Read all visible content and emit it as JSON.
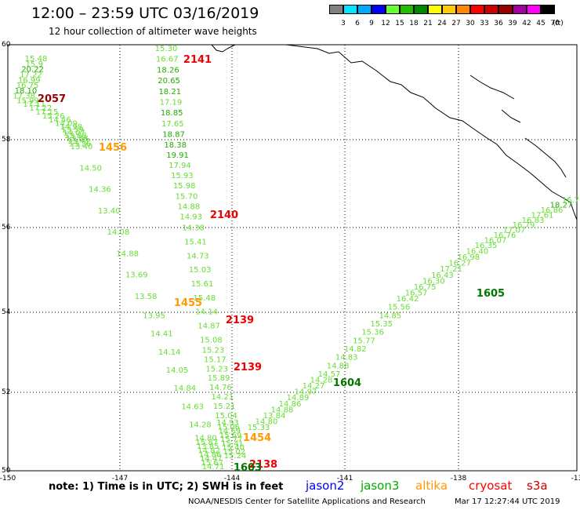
{
  "title": "12:00 – 23:59 UTC 03/16/2019",
  "subtitle": "12 hour collection of altimeter wave heights",
  "legend": [
    {
      "label": "3",
      "color": "#808080"
    },
    {
      "label": "6",
      "color": "#00e5ff"
    },
    {
      "label": "9",
      "color": "#00a8ff"
    },
    {
      "label": "12",
      "color": "#0000ff"
    },
    {
      "label": "15",
      "color": "#66ff33"
    },
    {
      "label": "18",
      "color": "#22bb00"
    },
    {
      "label": "21",
      "color": "#008800"
    },
    {
      "label": "24",
      "color": "#ffff00"
    },
    {
      "label": "27",
      "color": "#ffcc00"
    },
    {
      "label": "30",
      "color": "#ff8800"
    },
    {
      "label": "33",
      "color": "#ff0000"
    },
    {
      "label": "36",
      "color": "#cc0000"
    },
    {
      "label": "39",
      "color": "#990000"
    },
    {
      "label": "42",
      "color": "#a000a0"
    },
    {
      "label": "45",
      "color": "#ff00ff"
    },
    {
      "label": "70",
      "color": "#000000"
    }
  ],
  "legend_unit": "(ft)",
  "lat_labels": [
    "60",
    "58",
    "56",
    "54",
    "52",
    "50"
  ],
  "lon_labels": [
    "-150",
    "-147",
    "-144",
    "-141",
    "-138",
    "-13"
  ],
  "note": "note: 1) Time is in UTC; 2) SWH is in feet",
  "satellites": [
    {
      "name": "jason2",
      "color": "#0000ff"
    },
    {
      "name": "jason3",
      "color": "#00aa00"
    },
    {
      "name": "altika",
      "color": "#ff9900"
    },
    {
      "name": "cryosat",
      "color": "#ff0000"
    },
    {
      "name": "s3a",
      "color": "#cc0000"
    }
  ],
  "credit": "NOAA/NESDIS Center for Satellite Applications and Research",
  "timestamp": "Mar 17 12:27:44 UTC 2019",
  "colors": {
    "c15": "#66dd33",
    "c18": "#22aa00",
    "c21": "#007700",
    "time_red": "#ee0000",
    "time_orange": "#ff9900",
    "time_dark": "#990000"
  },
  "track_a": [
    "15.48",
    "15.9",
    "20.22",
    "17.22",
    "16.99",
    "16.75",
    "18.10",
    "17.38",
    "15.99",
    "17.11",
    "17.22",
    "17.15",
    "15.26",
    "14.46",
    "14.09",
    "14.98",
    "13.59",
    "14.07",
    "13.88",
    "13.88",
    "13.47",
    "13.26",
    "13.40",
    "14.50",
    "14.36",
    "13.40",
    "14.08",
    "14.88",
    "13.69",
    "13.58",
    "13.95",
    "14.41",
    "14.14",
    "14.05",
    "14.84",
    "14.63",
    "14.28",
    "14.80",
    "15.87",
    "13.85",
    "14.82",
    "14.86",
    "14.47",
    "15.67",
    "14.71"
  ],
  "track_b": [
    "15.30",
    "16.67",
    "18.26",
    "20.65",
    "18.21",
    "17.19",
    "18.85",
    "17.65",
    "18.87",
    "18.38",
    "19.91",
    "17.94",
    "15.93",
    "15.98",
    "15.70",
    "14.88",
    "14.93",
    "14.38",
    "15.41",
    "14.73",
    "15.03",
    "15.61",
    "15.48",
    "14.14",
    "14.87",
    "15.08",
    "15.23",
    "15.17",
    "15.23",
    "15.89",
    "14.76",
    "14.21",
    "15.21",
    "15.04",
    "14.93",
    "15.06",
    "14.59",
    "15.69",
    "15.77",
    "15.41",
    "15.40",
    "15.02",
    "15.24"
  ],
  "track_c": [
    "15.33",
    "14.80",
    "13.84",
    "14.88",
    "14.86",
    "14.89",
    "14.97",
    "14.27",
    "14.28",
    "14.57",
    "14.88",
    "14.83",
    "14.82",
    "15.77",
    "15.36",
    "15.35",
    "14.85",
    "15.56",
    "16.42",
    "16.57",
    "16.75",
    "16.30",
    "16.43",
    "17.21",
    "16.27",
    "16.98",
    "16.40",
    "16.35",
    "16.07",
    "16.76",
    "17.07",
    "16.79",
    "16.83",
    "17.61",
    "16.86",
    "18.27",
    "16.7"
  ],
  "time_labels": [
    {
      "text": "2141",
      "kind": "time_red"
    },
    {
      "text": "2057",
      "kind": "time_dark"
    },
    {
      "text": "1456",
      "kind": "time_orange"
    },
    {
      "text": "2140",
      "kind": "time_red"
    },
    {
      "text": "1455",
      "kind": "time_orange"
    },
    {
      "text": "2139",
      "kind": "time_red"
    },
    {
      "text": "2139",
      "kind": "time_red"
    },
    {
      "text": "1605",
      "kind": "c21"
    },
    {
      "text": "1604",
      "kind": "c21"
    },
    {
      "text": "1454",
      "kind": "time_orange"
    },
    {
      "text": "2138",
      "kind": "time_red"
    },
    {
      "text": "1603",
      "kind": "c21"
    }
  ]
}
